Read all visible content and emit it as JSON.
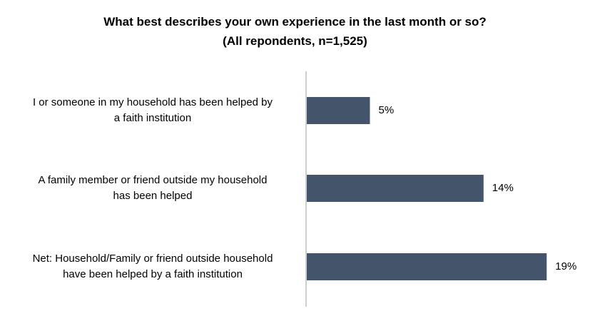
{
  "chart_data": {
    "type": "bar",
    "orientation": "horizontal",
    "title": "What best describes your own experience in the last month or so?",
    "subtitle": "(All repondents, n=1,525)",
    "categories": [
      [
        "I or someone in my household has been helped by",
        "a faith institution"
      ],
      [
        "A family member or friend outside my household",
        "has been helped"
      ],
      [
        "Net: Household/Family or friend outside household",
        "have been helped by a faith institution"
      ]
    ],
    "values": [
      5,
      14,
      19
    ],
    "value_labels": [
      "5%",
      "14%",
      "19%"
    ],
    "unit": "%",
    "xlim": [
      0,
      21
    ],
    "grid": false,
    "legend": "none",
    "bar_color": "#44546a",
    "axis_color": "#bfbfbf"
  }
}
